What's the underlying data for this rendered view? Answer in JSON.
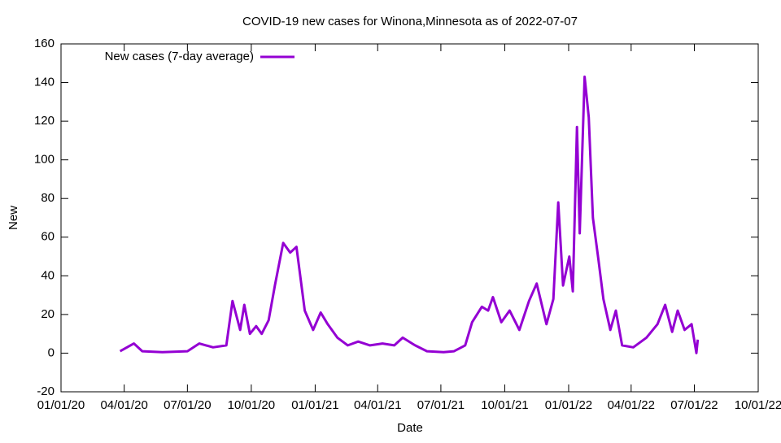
{
  "chart_data": {
    "type": "line",
    "title": "COVID-19 new cases for Winona,Minnesota as of 2022-07-07",
    "x_label": "Date",
    "y_label": "New",
    "legend": "top-left",
    "x": [
      "2020-03-26",
      "2020-04-15",
      "2020-04-27",
      "2020-05-26",
      "2020-07-01",
      "2020-07-18",
      "2020-08-07",
      "2020-08-26",
      "2020-09-04",
      "2020-09-15",
      "2020-09-21",
      "2020-09-29",
      "2020-10-08",
      "2020-10-16",
      "2020-10-26",
      "2020-11-04",
      "2020-11-16",
      "2020-11-26",
      "2020-12-05",
      "2020-12-17",
      "2020-12-29",
      "2021-01-09",
      "2021-01-19",
      "2021-02-02",
      "2021-02-17",
      "2021-03-04",
      "2021-03-21",
      "2021-04-08",
      "2021-04-25",
      "2021-05-07",
      "2021-05-25",
      "2021-06-11",
      "2021-07-05",
      "2021-07-20",
      "2021-08-05",
      "2021-08-15",
      "2021-08-29",
      "2021-09-07",
      "2021-09-14",
      "2021-09-26",
      "2021-10-08",
      "2021-10-22",
      "2021-11-05",
      "2021-11-16",
      "2021-11-30",
      "2021-12-10",
      "2021-12-17",
      "2021-12-24",
      "2022-01-02",
      "2022-01-07",
      "2022-01-13",
      "2022-01-17",
      "2022-01-24",
      "2022-01-30",
      "2022-02-05",
      "2022-02-13",
      "2022-02-20",
      "2022-03-02",
      "2022-03-10",
      "2022-03-19",
      "2022-04-04",
      "2022-04-23",
      "2022-05-09",
      "2022-05-20",
      "2022-05-30",
      "2022-06-07",
      "2022-06-17",
      "2022-06-27",
      "2022-07-04",
      "2022-07-06"
    ],
    "series": [
      {
        "name": "New cases (7-day average)",
        "color": "#9400d3",
        "values": [
          1,
          5,
          1,
          0.5,
          1,
          5,
          3,
          4,
          27,
          12,
          25,
          10,
          14,
          10,
          17,
          35,
          57,
          52,
          55,
          22,
          12,
          21,
          15,
          8,
          4,
          6,
          4,
          5,
          4,
          8,
          4,
          1,
          0.5,
          1,
          4,
          16,
          24,
          22,
          29,
          16,
          22,
          12,
          27,
          36,
          15,
          28,
          78,
          35,
          50,
          32,
          117,
          62,
          143,
          122,
          70,
          48,
          28,
          12,
          22,
          4,
          3,
          8,
          15,
          25,
          11,
          22,
          12,
          15,
          0,
          7
        ]
      }
    ],
    "xlim": [
      "2020-01-01",
      "2022-10-01"
    ],
    "xticks": [
      {
        "value": "2020-01-01",
        "label": "01/01/20"
      },
      {
        "value": "2020-04-01",
        "label": "04/01/20"
      },
      {
        "value": "2020-07-01",
        "label": "07/01/20"
      },
      {
        "value": "2020-10-01",
        "label": "10/01/20"
      },
      {
        "value": "2021-01-01",
        "label": "01/01/21"
      },
      {
        "value": "2021-04-01",
        "label": "04/01/21"
      },
      {
        "value": "2021-07-01",
        "label": "07/01/21"
      },
      {
        "value": "2021-10-01",
        "label": "10/01/21"
      },
      {
        "value": "2022-01-01",
        "label": "01/01/22"
      },
      {
        "value": "2022-04-01",
        "label": "04/01/22"
      },
      {
        "value": "2022-07-01",
        "label": "07/01/22"
      },
      {
        "value": "2022-10-01",
        "label": "10/01/22"
      }
    ],
    "ylim": [
      -20,
      160
    ],
    "yticks": [
      -20,
      0,
      20,
      40,
      60,
      80,
      100,
      120,
      140,
      160
    ]
  }
}
